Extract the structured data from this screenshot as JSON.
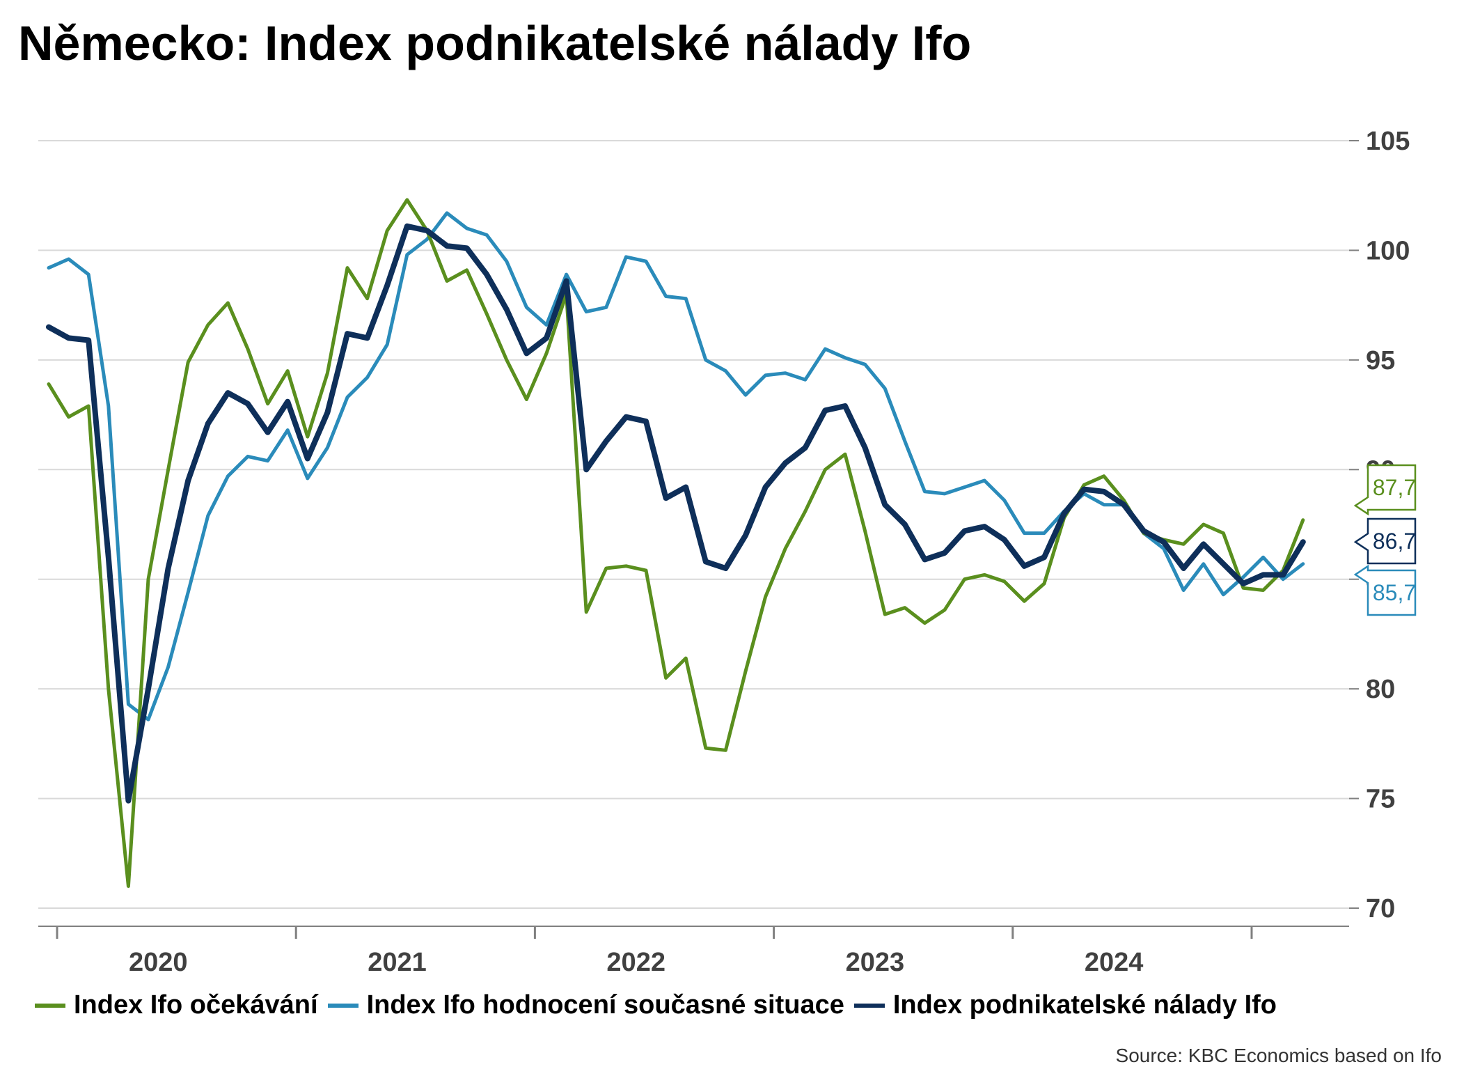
{
  "title": "Německo: Index podnikatelské nálady Ifo",
  "source": "Source: KBC Economics based on Ifo",
  "colors": {
    "expectations": "#5a8f1e",
    "current": "#2a8bba",
    "climate": "#0e2f5a",
    "grid": "#d9d9d9",
    "axis": "#808080"
  },
  "chart_data": {
    "type": "line",
    "x_start": "2020-01",
    "x_tick_labels": [
      "2020",
      "2021",
      "2022",
      "2023",
      "2024"
    ],
    "ylim": [
      69,
      106
    ],
    "y_ticks": [
      70,
      75,
      80,
      85,
      90,
      95,
      100,
      105
    ],
    "grid": true,
    "legend_position": "bottom",
    "series": [
      {
        "key": "expectations",
        "name": "Index Ifo očekávání",
        "end_label": "87,7",
        "values": [
          93.9,
          92.4,
          92.9,
          80.0,
          71.0,
          85.0,
          90.0,
          94.9,
          96.6,
          97.6,
          95.5,
          93.0,
          94.5,
          91.5,
          94.4,
          99.2,
          97.8,
          100.9,
          102.3,
          100.9,
          98.6,
          99.1,
          97.1,
          95.0,
          93.2,
          95.3,
          98.0,
          83.5,
          85.5,
          85.6,
          85.4,
          80.5,
          81.4,
          77.3,
          77.2,
          80.8,
          84.2,
          86.4,
          88.1,
          90.0,
          90.7,
          87.2,
          83.4,
          83.7,
          83.0,
          83.6,
          85.0,
          85.2,
          84.9,
          84.0,
          84.8,
          87.8,
          89.3,
          89.7,
          88.6,
          87.1,
          86.8,
          86.6,
          87.5,
          87.1,
          84.6,
          84.5,
          85.4,
          87.7
        ]
      },
      {
        "key": "current",
        "name": "Index Ifo hodnocení současné situace",
        "end_label": "85,7",
        "values": [
          99.2,
          99.6,
          98.9,
          92.9,
          79.3,
          78.6,
          81.0,
          84.4,
          87.9,
          89.7,
          90.6,
          90.4,
          91.8,
          89.6,
          91.0,
          93.3,
          94.2,
          95.7,
          99.8,
          100.5,
          101.7,
          101.0,
          100.7,
          99.5,
          97.4,
          96.6,
          98.9,
          97.2,
          97.4,
          99.7,
          99.5,
          97.9,
          97.8,
          95.0,
          94.5,
          93.4,
          94.3,
          94.4,
          94.1,
          95.5,
          95.1,
          94.8,
          93.7,
          91.3,
          89.0,
          88.9,
          89.2,
          89.5,
          88.6,
          87.1,
          87.1,
          88.1,
          88.9,
          88.4,
          88.4,
          87.1,
          86.4,
          84.5,
          85.7,
          84.3,
          85.1,
          86.0,
          85.0,
          85.7
        ]
      },
      {
        "key": "climate",
        "name": "Index podnikatelské nálady Ifo",
        "end_label": "86,7",
        "values": [
          96.5,
          96.0,
          95.9,
          86.0,
          74.9,
          80.0,
          85.5,
          89.5,
          92.1,
          93.5,
          93.0,
          91.7,
          93.1,
          90.5,
          92.6,
          96.2,
          96.0,
          98.4,
          101.1,
          100.9,
          100.2,
          100.1,
          98.9,
          97.3,
          95.3,
          96.0,
          98.6,
          90.0,
          91.3,
          92.4,
          92.2,
          88.7,
          89.2,
          85.8,
          85.5,
          87.0,
          89.2,
          90.3,
          91.0,
          92.7,
          92.9,
          91.0,
          88.4,
          87.5,
          85.9,
          86.2,
          87.2,
          87.4,
          86.8,
          85.6,
          86.0,
          88.0,
          89.1,
          89.0,
          88.4,
          87.2,
          86.7,
          85.5,
          86.6,
          85.7,
          84.8,
          85.2,
          85.2,
          86.7
        ]
      }
    ]
  }
}
